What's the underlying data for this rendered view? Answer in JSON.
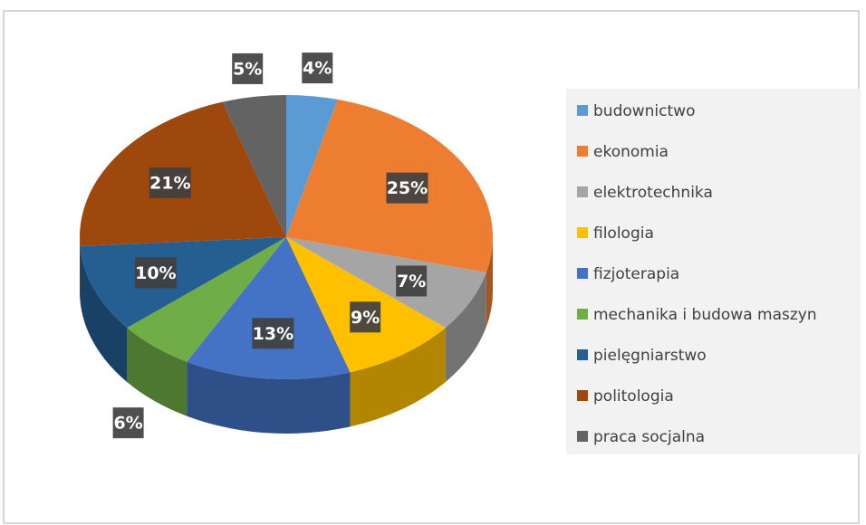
{
  "chart_data": {
    "type": "pie",
    "categories": [
      "budownictwo",
      "ekonomia",
      "elektrotechnika",
      "filologia",
      "fizjoterapia",
      "mechanika i budowa maszyn",
      "pielęgniarstwo",
      "politologia",
      "praca socjalna"
    ],
    "values": [
      4,
      25,
      7,
      9,
      13,
      6,
      10,
      21,
      5
    ],
    "value_labels": [
      "4%",
      "25%",
      "7%",
      "9%",
      "13%",
      "6%",
      "10%",
      "21%",
      "5%"
    ],
    "colors": [
      "#5b9bd5",
      "#ed7d31",
      "#a5a5a5",
      "#ffc000",
      "#4472c4",
      "#70ad47",
      "#255e91",
      "#9e480e",
      "#636363"
    ],
    "legend": "right"
  }
}
